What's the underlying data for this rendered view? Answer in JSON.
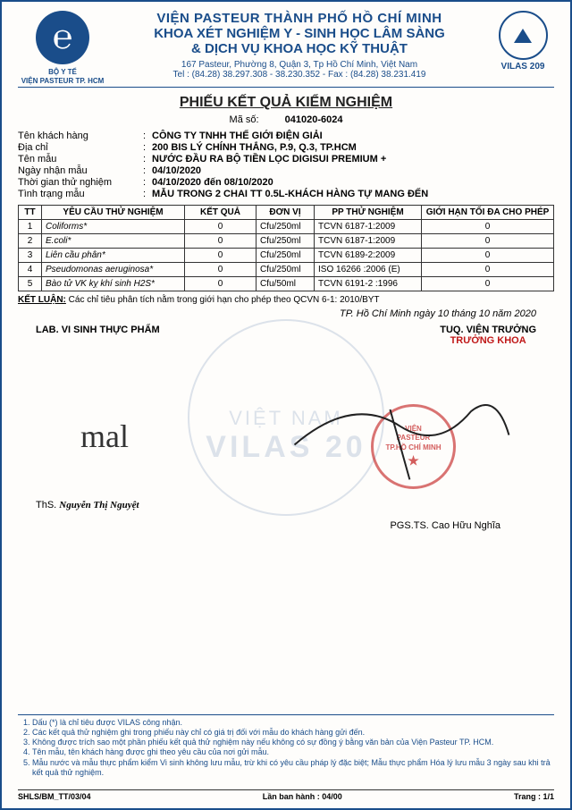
{
  "header": {
    "ministry": "BỘ Y TẾ",
    "org": "VIỆN PASTEUR TP. HCM",
    "institute": "VIỆN PASTEUR THÀNH PHỐ HỒ CHÍ MINH",
    "dept": "KHOA XÉT NGHIỆM Y - SINH HỌC LÂM SÀNG",
    "service": "& DỊCH VỤ KHOA HỌC KỸ THUẬT",
    "address": "167 Pasteur, Phường 8, Quận 3, Tp Hồ Chí Minh, Việt Nam",
    "contact": "Tel : (84.28) 38.297.308 - 38.230.352 - Fax : (84.28) 38.231.419",
    "vilas": "VILAS 209"
  },
  "cert": {
    "title": "PHIẾU KẾT QUẢ KIỂM NGHIỆM",
    "code_label": "Mã số:",
    "code": "041020-6024"
  },
  "info": {
    "customer_label": "Tên khách hàng",
    "customer": "CÔNG TY TNHH THẾ GIỚI ĐIỆN GIẢI",
    "address_label": "Địa chỉ",
    "address": "200 BIS LÝ CHÍNH THẮNG, P.9, Q.3, TP.HCM",
    "sample_label": "Tên mẫu",
    "sample": "NƯỚC ĐẦU RA BỘ TIỀN LỌC DIGISUI PREMIUM +",
    "recv_label": "Ngày nhận mẫu",
    "recv": "04/10/2020",
    "period_label": "Thời gian thử nghiệm",
    "period": "04/10/2020 đến 08/10/2020",
    "status_label": "Tình trạng mẫu",
    "status": "MẪU TRONG 2 CHAI TT 0.5L-KHÁCH HÀNG TỰ MANG ĐẾN"
  },
  "table": {
    "headers": {
      "tt": "TT",
      "req": "YÊU CẦU THỬ NGHIỆM",
      "result": "KẾT QUẢ",
      "unit": "ĐƠN VỊ",
      "method": "PP THỬ NGHIỆM",
      "limit": "GIỚI HẠN TỐI ĐA CHO PHÉP"
    },
    "rows": [
      {
        "tt": "1",
        "req": "Coliforms*",
        "result": "0",
        "unit": "Cfu/250ml",
        "method": "TCVN 6187-1:2009",
        "limit": "0"
      },
      {
        "tt": "2",
        "req": "E.coli*",
        "result": "0",
        "unit": "Cfu/250ml",
        "method": "TCVN 6187-1:2009",
        "limit": "0"
      },
      {
        "tt": "3",
        "req": "Liên cầu phân*",
        "result": "0",
        "unit": "Cfu/250ml",
        "method": "TCVN 6189-2:2009",
        "limit": "0"
      },
      {
        "tt": "4",
        "req": "Pseudomonas aeruginosa*",
        "result": "0",
        "unit": "Cfu/250ml",
        "method": "ISO 16266 :2006 (E)",
        "limit": "0"
      },
      {
        "tt": "5",
        "req": "Bào tử VK kỵ khí sinh H2S*",
        "result": "0",
        "unit": "Cfu/50ml",
        "method": "TCVN 6191-2 :1996",
        "limit": "0"
      }
    ]
  },
  "conclusion": {
    "label": "KẾT LUẬN:",
    "text": "Các chỉ tiêu phân tích nằm trong giới hạn cho phép theo QCVN 6-1: 2010/BYT"
  },
  "date_line": "TP. Hồ Chí Minh ngày   10   tháng   10   năm   2020",
  "sig": {
    "left_lab": "LAB. VI SINH THỰC PHẨM",
    "right_tuq": "TUQ. VIỆN TRƯỞNG",
    "right_role": "TRƯỞNG KHOA",
    "left_signer_prefix": "ThS.",
    "left_signer": "Nguyễn Thị Nguyệt",
    "right_signer": "PGS.TS. Cao Hữu Nghĩa",
    "stamp_l1": "VIỆN",
    "stamp_l2": "PASTEUR",
    "stamp_l3": "TP.HỒ CHÍ MINH"
  },
  "watermark": {
    "vn": "VIỆT NAM",
    "vilas": "VILAS 20"
  },
  "footnotes": [
    "Dấu (*) là chỉ tiêu được VILAS công nhận.",
    "Các kết quả thử nghiệm ghi trong phiếu này chỉ có giá trị đối với mẫu do khách hàng gửi đến.",
    "Không được trích sao một phần phiếu kết quả thử nghiệm này nếu không có sự đồng ý bằng văn bản của Viện Pasteur TP. HCM.",
    "Tên mẫu, tên khách hàng được ghi theo yêu cầu của nơi gửi mẫu.",
    "Mẫu nước và mẫu thực phẩm kiểm Vi sinh không lưu mẫu, trừ khi có yêu cầu pháp lý đặc biệt; Mẫu thực phẩm Hóa lý lưu mẫu 3 ngày sau khi trả kết quả thử nghiệm."
  ],
  "footer": {
    "form": "SHLS/BM_TT/03/04",
    "issue": "Lần ban hành : 04/00",
    "page": "Trang : 1/1"
  }
}
